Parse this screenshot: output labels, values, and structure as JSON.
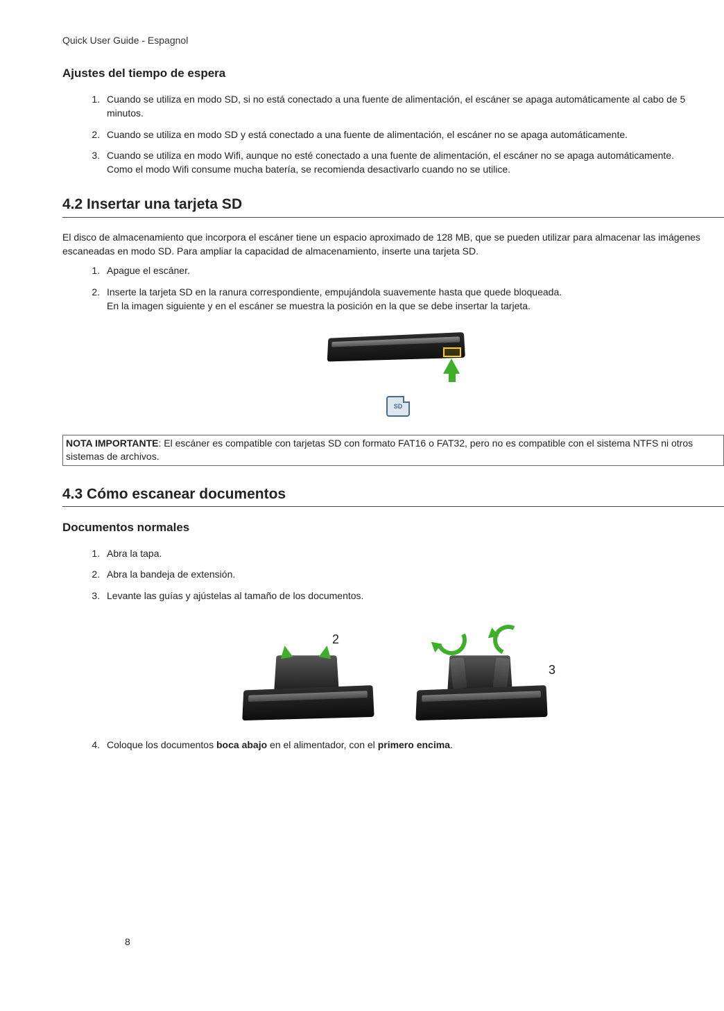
{
  "header": "Quick User Guide - Espagnol",
  "sub1_title": "Ajustes del tiempo de espera",
  "sub1_items": [
    "Cuando se utiliza en modo SD, si no está conectado a una fuente de alimentación, el escáner se apaga automáticamente al cabo de 5 minutos.",
    "Cuando se utiliza en modo SD y está conectado a una fuente de alimentación, el escáner no se apaga automáticamente.",
    "Cuando se utiliza en modo Wifi, aunque no esté conectado a una fuente de alimentación, el escáner no se apaga automáticamente.\nComo el modo Wifi consume mucha batería, se recomienda desactivarlo cuando no se utilice."
  ],
  "sec42_title": "4.2 Insertar una tarjeta SD",
  "sec42_intro": "El disco de almacenamiento que incorpora el escáner tiene un espacio aproximado de 128 MB, que se pueden utilizar para almacenar las imágenes escaneadas en modo SD. Para ampliar la capacidad de almacenamiento, inserte una tarjeta SD.",
  "sec42_items": [
    "Apague el escáner.",
    "Inserte la tarjeta SD en la ranura correspondiente, empujándola suavemente hasta que quede bloqueada.\nEn la imagen siguiente y en el escáner se muestra la posición en la que se debe insertar la tarjeta."
  ],
  "sd_label": "SD",
  "note_lead": "NOTA IMPORTANTE",
  "note_text": ": El escáner es compatible con tarjetas SD con formato FAT16 o FAT32, pero no es compatible con el sistema NTFS ni otros sistemas de archivos.",
  "sec43_title": "4.3 Cómo escanear documentos",
  "sub43_title": "Documentos normales",
  "sec43_items": [
    "Abra la tapa.",
    "Abra la bandeja de extensión.",
    "Levante las guías y ajústelas al tamaño de los documentos."
  ],
  "fig_label_2": "2",
  "fig_label_3": "3",
  "sec43_item4_pre": "Coloque los documentos ",
  "sec43_item4_b1": "boca abajo",
  "sec43_item4_mid": " en el alimentador, con el ",
  "sec43_item4_b2": "primero encima",
  "sec43_item4_post": ".",
  "page_number": "8"
}
